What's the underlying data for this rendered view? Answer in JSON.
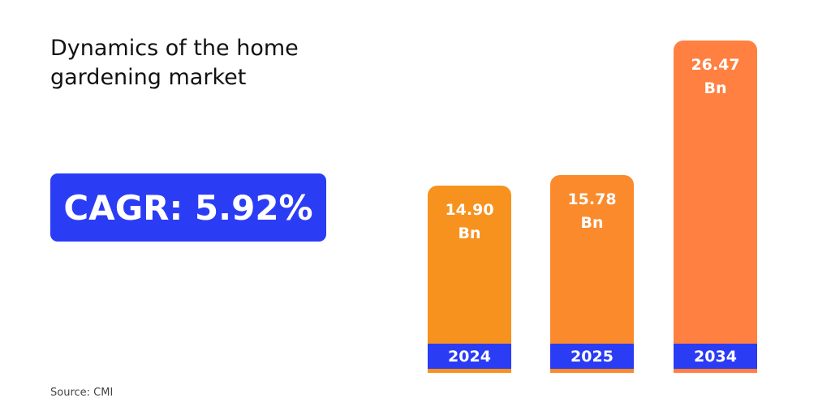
{
  "chart_data": {
    "type": "bar",
    "title": "Dynamics of the home gardening market",
    "annotation": "CAGR: 5.92%",
    "categories": [
      "2024",
      "2025",
      "2034"
    ],
    "values": [
      14.9,
      15.78,
      26.47
    ],
    "value_labels": [
      "14.90 Bn",
      "15.78 Bn",
      "26.47 Bn"
    ],
    "colors": [
      "#f7921e",
      "#fa8a2c",
      "#ff8040"
    ],
    "source": "Source: CMI"
  }
}
